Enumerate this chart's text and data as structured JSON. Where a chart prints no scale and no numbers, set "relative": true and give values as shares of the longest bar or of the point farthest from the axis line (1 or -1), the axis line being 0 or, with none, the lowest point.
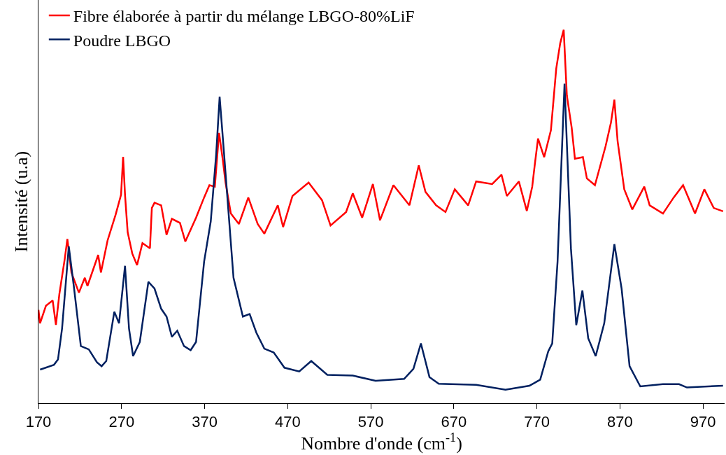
{
  "chart_data": {
    "type": "line",
    "relative": true,
    "xlabel": "Nombre d'onde (cm$^{-1}$)",
    "ylabel": "Intensité (u.a)",
    "xlim": [
      170,
      996
    ],
    "xticks": [
      170,
      270,
      370,
      470,
      570,
      670,
      770,
      870,
      970
    ],
    "legend": "top left",
    "grid": false,
    "marker": "none",
    "line_style": "solid",
    "series": [
      {
        "name": "Fibre élaborée à partir du mélange LBGO-80%LiF",
        "color": "#ff0000",
        "x": [
          170,
          171.9,
          179,
          187.1,
          191,
          195.2,
          201.6,
          204.8,
          209.7,
          218.7,
          225.8,
          229,
          241.9,
          245.2,
          253.2,
          262.9,
          269.4,
          271.9,
          274.2,
          277.4,
          282.9,
          288.7,
          295.2,
          304.2,
          306.5,
          309.7,
          317.7,
          324.2,
          330.6,
          340.3,
          346.8,
          359.7,
          369.4,
          375.8,
          382.3,
          387.4,
          391.9,
          395.2,
          401.6,
          411.3,
          422.6,
          433.9,
          441.9,
          458.1,
          464.5,
          475.8,
          495.2,
          511.3,
          521.6,
          540.3,
          548.4,
          559.7,
          572.6,
          581.2,
          597.3,
          616.6,
          627.8,
          635.9,
          648.7,
          660,
          671.2,
          687.3,
          696.9,
          716.2,
          727.4,
          733.9,
          748.3,
          757.9,
          764.4,
          767.6,
          771.4,
          778.8,
          786.9,
          793.3,
          798.1,
          802.3,
          806.1,
          811.9,
          815.8,
          825.4,
          830.2,
          839.9,
          844.7,
          852.7,
          859.2,
          863.3,
          867.2,
          875.2,
          884.9,
          899.3,
          905.8,
          921.8,
          934.7,
          946,
          960.4,
          971.6,
          982.9,
          994.1
        ],
        "values": [
          0.25,
          0.214,
          0.261,
          0.275,
          0.21,
          0.293,
          0.386,
          0.44,
          0.35,
          0.296,
          0.336,
          0.314,
          0.397,
          0.35,
          0.436,
          0.505,
          0.558,
          0.66,
          0.558,
          0.458,
          0.401,
          0.37,
          0.429,
          0.415,
          0.523,
          0.537,
          0.53,
          0.451,
          0.494,
          0.483,
          0.433,
          0.497,
          0.551,
          0.584,
          0.58,
          0.724,
          0.652,
          0.591,
          0.508,
          0.48,
          0.551,
          0.48,
          0.454,
          0.53,
          0.472,
          0.555,
          0.591,
          0.544,
          0.476,
          0.512,
          0.562,
          0.497,
          0.587,
          0.49,
          0.584,
          0.53,
          0.637,
          0.566,
          0.53,
          0.512,
          0.573,
          0.53,
          0.594,
          0.587,
          0.612,
          0.555,
          0.594,
          0.515,
          0.58,
          0.641,
          0.709,
          0.659,
          0.731,
          0.896,
          0.964,
          1.0,
          0.824,
          0.738,
          0.655,
          0.659,
          0.602,
          0.584,
          0.623,
          0.688,
          0.752,
          0.813,
          0.702,
          0.573,
          0.519,
          0.58,
          0.53,
          0.508,
          0.551,
          0.584,
          0.508,
          0.573,
          0.523,
          0.514
        ]
      },
      {
        "name": "Poudre LBGO",
        "color": "#002060",
        "x": [
          172,
          188.7,
          193.5,
          198.4,
          206.5,
          212.9,
          221,
          230.6,
          240.3,
          246,
          251.6,
          261.3,
          267,
          274.2,
          279,
          283.9,
          292,
          302.3,
          309.7,
          317.7,
          324.2,
          330.6,
          337.1,
          345.2,
          353.2,
          359.7,
          369.4,
          377.4,
          383.9,
          388.1,
          393.5,
          404.8,
          416.1,
          424.2,
          432.3,
          441.9,
          453.2,
          466.1,
          483.9,
          498.4,
          517.7,
          548.4,
          575.8,
          610.2,
          621.4,
          630.4,
          640.7,
          651.9,
          696.9,
          732.2,
          761.2,
          774,
          783.7,
          788.5,
          794.9,
          803.3,
          811,
          817.4,
          824.8,
          831.8,
          840.8,
          851.1,
          863.3,
          872,
          881.6,
          894.5,
          921.8,
          941.1,
          950.7,
          994.1
        ],
        "values": [
          0.09,
          0.103,
          0.117,
          0.2,
          0.42,
          0.307,
          0.153,
          0.144,
          0.11,
          0.099,
          0.113,
          0.245,
          0.214,
          0.368,
          0.2,
          0.126,
          0.164,
          0.325,
          0.307,
          0.253,
          0.232,
          0.178,
          0.194,
          0.153,
          0.142,
          0.164,
          0.379,
          0.487,
          0.666,
          0.821,
          0.666,
          0.336,
          0.232,
          0.239,
          0.189,
          0.146,
          0.136,
          0.095,
          0.085,
          0.113,
          0.076,
          0.074,
          0.06,
          0.065,
          0.092,
          0.16,
          0.07,
          0.052,
          0.049,
          0.036,
          0.047,
          0.063,
          0.139,
          0.16,
          0.379,
          0.856,
          0.415,
          0.209,
          0.302,
          0.174,
          0.126,
          0.214,
          0.426,
          0.307,
          0.099,
          0.045,
          0.051,
          0.051,
          0.042,
          0.047
        ]
      }
    ]
  }
}
